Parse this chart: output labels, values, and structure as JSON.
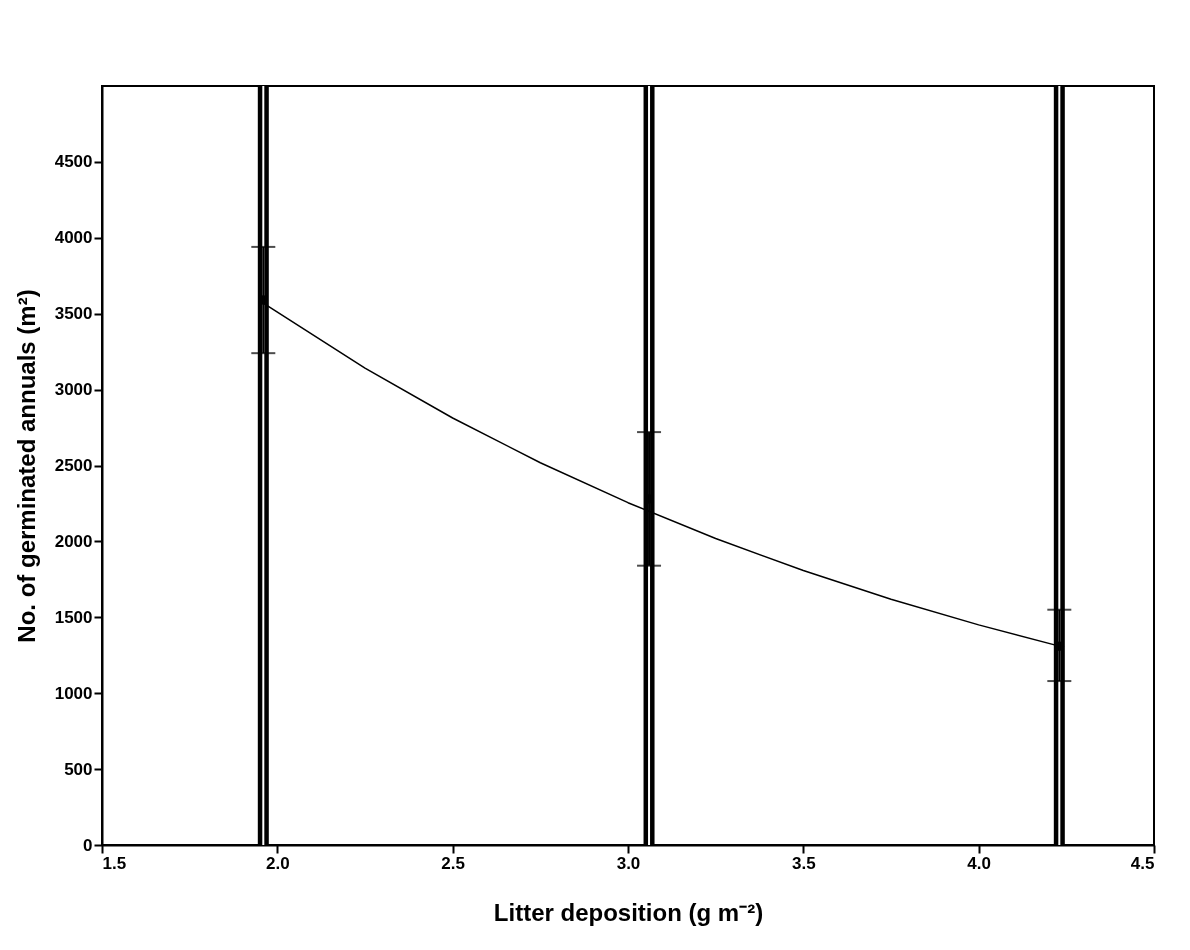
{
  "chart_data": {
    "type": "scatter",
    "xlabel": "Litter deposition (g m⁻²)",
    "ylabel": "No. of germinated annuals (m²)",
    "xlim": [
      1.5,
      4.5
    ],
    "xticks": [
      1.5,
      {
        "value": 2,
        "label": "2.0"
      },
      2.5,
      {
        "value": 3,
        "label": "3.0"
      },
      3.5,
      {
        "value": 4,
        "label": "4.0"
      },
      4.5
    ],
    "ylim": [
      0,
      5000
    ],
    "yticks": [
      0,
      500,
      1000,
      1500,
      2000,
      2500,
      3000,
      3500,
      4000,
      4500
    ],
    "grid": false,
    "series": [
      {
        "color": "#000000",
        "marker": "circle",
        "x": [
          1.96,
          3.06,
          4.23
        ],
        "values": [
          3590,
          2280,
          1310
        ],
        "errors": [
          [
            3240,
            3940
          ],
          [
            1840,
            2720
          ],
          [
            1080,
            1550
          ]
        ]
      },
      {
        "type": "line",
        "color": "#000000",
        "line_style": "solid",
        "x": [
          1.96,
          2.25,
          2.5,
          2.75,
          3.0,
          3.25,
          3.5,
          3.75,
          4.0,
          4.23
        ],
        "values": [
          3570,
          3142,
          2813,
          2518,
          2255,
          2019,
          1808,
          1619,
          1450,
          1310
        ]
      }
    ],
    "ref_lines": [
      {
        "axis": "x",
        "value": 1.96,
        "color": "#000000"
      },
      {
        "axis": "x",
        "value": 3.06,
        "color": "#000000"
      },
      {
        "axis": "x",
        "value": 4.23,
        "color": "#000000"
      }
    ]
  }
}
